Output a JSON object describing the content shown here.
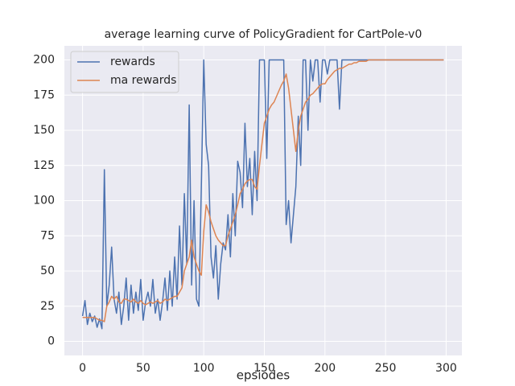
{
  "chart_data": {
    "type": "line",
    "title": "average learning curve of PolicyGradient for CartPole-v0",
    "x_label": "epsiodes",
    "x": [
      0,
      2,
      4,
      6,
      8,
      10,
      12,
      14,
      16,
      18,
      20,
      22,
      24,
      26,
      28,
      30,
      32,
      34,
      36,
      38,
      40,
      42,
      44,
      46,
      48,
      50,
      52,
      54,
      56,
      58,
      60,
      62,
      64,
      66,
      68,
      70,
      72,
      74,
      76,
      78,
      80,
      82,
      84,
      86,
      88,
      90,
      92,
      94,
      96,
      98,
      100,
      102,
      104,
      106,
      108,
      110,
      112,
      114,
      116,
      118,
      120,
      122,
      124,
      126,
      128,
      130,
      132,
      134,
      136,
      138,
      140,
      142,
      144,
      146,
      148,
      150,
      152,
      154,
      156,
      158,
      160,
      162,
      164,
      166,
      168,
      170,
      172,
      174,
      176,
      178,
      180,
      182,
      184,
      186,
      188,
      190,
      192,
      194,
      196,
      198,
      200,
      202,
      204,
      206,
      208,
      210,
      212,
      214,
      216,
      218,
      220,
      222,
      224,
      226,
      228,
      230,
      232,
      234,
      236,
      238,
      240,
      242,
      244,
      246,
      248,
      250,
      252,
      254,
      256,
      258,
      260,
      262,
      264,
      266,
      268,
      270,
      272,
      274,
      276,
      278,
      280,
      282,
      284,
      286,
      288,
      290,
      292,
      294,
      296,
      298
    ],
    "series": [
      {
        "name": "rewards",
        "color": "#4c72b0",
        "values": [
          18,
          29,
          12,
          20,
          14,
          18,
          10,
          16,
          9,
          122,
          25,
          40,
          67,
          30,
          20,
          35,
          12,
          25,
          45,
          15,
          40,
          20,
          35,
          22,
          44,
          15,
          28,
          35,
          25,
          44,
          20,
          30,
          15,
          28,
          45,
          22,
          50,
          25,
          60,
          30,
          82,
          40,
          105,
          55,
          168,
          40,
          100,
          30,
          25,
          110,
          200,
          140,
          125,
          60,
          45,
          68,
          30,
          55,
          70,
          65,
          90,
          60,
          105,
          75,
          128,
          120,
          95,
          155,
          110,
          130,
          90,
          135,
          100,
          200,
          200,
          200,
          130,
          200,
          200,
          200,
          200,
          200,
          200,
          200,
          83,
          100,
          70,
          90,
          110,
          160,
          125,
          200,
          200,
          150,
          200,
          185,
          200,
          200,
          170,
          200,
          200,
          190,
          200,
          200,
          200,
          200,
          165,
          200,
          200,
          200,
          200,
          200,
          200,
          200,
          200,
          200,
          200,
          200,
          200,
          200,
          200,
          200,
          200,
          200,
          200,
          200,
          200,
          200,
          200,
          200,
          200,
          200,
          200,
          200,
          200,
          200,
          200,
          200,
          200,
          200,
          200,
          200,
          200,
          200,
          200,
          200,
          200,
          200,
          200,
          200
        ]
      },
      {
        "name": "ma rewards",
        "color": "#dd8452",
        "values": [
          17,
          17,
          17,
          17,
          17,
          17,
          16,
          15,
          15,
          14,
          25,
          28,
          32,
          30,
          32,
          28,
          27,
          30,
          30,
          29,
          28,
          30,
          28,
          27,
          29,
          27,
          26,
          27,
          28,
          27,
          28,
          29,
          27,
          28,
          30,
          29,
          30,
          31,
          32,
          32,
          35,
          38,
          50,
          55,
          60,
          72,
          60,
          55,
          50,
          47,
          78,
          97,
          92,
          85,
          80,
          75,
          72,
          70,
          68,
          68,
          75,
          80,
          85,
          90,
          97,
          105,
          108,
          112,
          114,
          115,
          115,
          110,
          108,
          125,
          140,
          155,
          160,
          165,
          168,
          170,
          174,
          178,
          182,
          185,
          190,
          180,
          165,
          150,
          135,
          150,
          160,
          165,
          170,
          172,
          175,
          176,
          178,
          180,
          182,
          183,
          183,
          186,
          188,
          190,
          192,
          193,
          194,
          194,
          195,
          196,
          197,
          197,
          198,
          198,
          199,
          199,
          199,
          199,
          200,
          200,
          200,
          200,
          200,
          200,
          200,
          200,
          200,
          200,
          200,
          200,
          200,
          200,
          200,
          200,
          200,
          200,
          200,
          200,
          200,
          200,
          200,
          200,
          200,
          200,
          200,
          200,
          200,
          200,
          200,
          200
        ]
      }
    ],
    "xlim": [
      -15,
      313
    ],
    "ylim": [
      -10,
      210
    ],
    "xticks": [
      0,
      50,
      100,
      150,
      200,
      250,
      300
    ],
    "yticks": [
      0,
      25,
      50,
      75,
      100,
      125,
      150,
      175,
      200
    ],
    "grid": true,
    "legend": "upper left"
  }
}
